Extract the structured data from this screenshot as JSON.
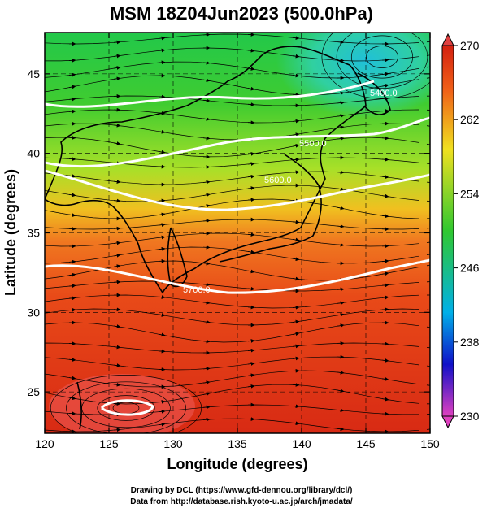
{
  "title": "MSM 18Z04Jun2023 (500.0hPa)",
  "x_axis": {
    "label": "Longitude (degrees)",
    "ticks": [
      "120",
      "125",
      "130",
      "135",
      "140",
      "145",
      "150"
    ],
    "range": [
      120,
      150
    ]
  },
  "y_axis": {
    "label": "Latitude  (degrees)",
    "ticks": [
      "25",
      "30",
      "35",
      "40",
      "45"
    ],
    "range": [
      22.4,
      47.6
    ]
  },
  "colorbar": {
    "ticks": [
      "270",
      "262",
      "254",
      "246",
      "238",
      "230"
    ],
    "range": [
      230,
      270
    ],
    "colors": [
      "#e040c0",
      "#1010c8",
      "#00b0e8",
      "#30c830",
      "#f0e020",
      "#f06018",
      "#d02010"
    ]
  },
  "contours": [
    {
      "label": "5400.0"
    },
    {
      "label": "5500.0"
    },
    {
      "label": "5600.0"
    },
    {
      "label": "5700.0"
    },
    {
      "label": "5800.0"
    }
  ],
  "credits": {
    "line1": "Drawing by DCL (https://www.gfd-dennou.org/library/dcl/)",
    "line2": "Data from http://database.rish.kyoto-u.ac.jp/arch/jmadata/"
  }
}
